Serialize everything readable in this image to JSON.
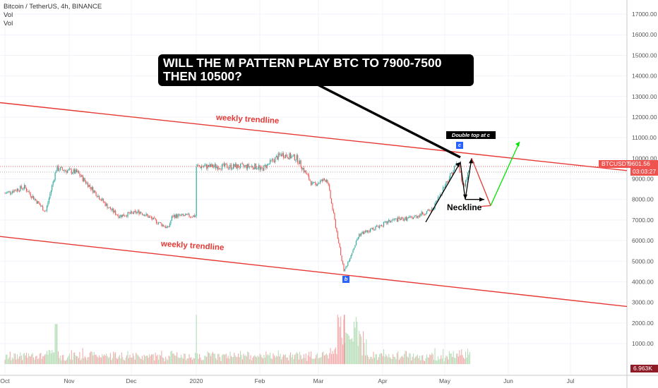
{
  "header": {
    "symbol_line": "Bitcoin / TetherUS, 4h, BINANCE",
    "indicator_1": "Vol",
    "indicator_2": "Vol"
  },
  "annotations": {
    "callout_line_1": "WILL THE M PATTERN PLAY BTC TO 7900-7500",
    "callout_line_2": "THEN 10500?",
    "double_top_label": "Double top at c",
    "point_c": "c",
    "point_b": "b",
    "neckline_label": "Neckline",
    "upper_trendline_label": "weekly trendline",
    "lower_trendline_label": "weekly trendline"
  },
  "price_tags": {
    "symbol": "BTCUSDT",
    "last_price": "9601.56",
    "countdown": "03:03:27",
    "volume": "6.963K"
  },
  "colors": {
    "up": "#26a69a",
    "down": "#ef5350",
    "trendline": "#e53935",
    "projection_down": "#e53935",
    "projection_up": "#00e600"
  },
  "chart_data": {
    "type": "candlestick",
    "x_tick_labels": [
      "Oct",
      "Nov",
      "Dec",
      "2020",
      "Feb",
      "Mar",
      "Apr",
      "May",
      "Jun",
      "Jul"
    ],
    "y_tick_labels": [
      "17000.00",
      "16000.00",
      "15000.00",
      "14000.00",
      "13000.00",
      "12000.00",
      "11000.00",
      "10000.00",
      "9000.00",
      "8000.00",
      "7000.00",
      "6000.00",
      "5000.00",
      "4000.00",
      "3000.00",
      "2000.00",
      "1000.00"
    ],
    "y_ticks": [
      17000,
      16000,
      15000,
      14000,
      13000,
      12000,
      11000,
      10000,
      9000,
      8000,
      7000,
      6000,
      5000,
      4000,
      3000,
      2000,
      1000
    ],
    "ylim": [
      0,
      17700
    ],
    "price_path": [
      [
        "Oct",
        8300
      ],
      [
        "Oct 10",
        8600
      ],
      [
        "Oct 20",
        7400
      ],
      [
        "Oct 25",
        9500
      ],
      [
        "Nov 5",
        9300
      ],
      [
        "Nov 20",
        7600
      ],
      [
        "Nov 25",
        7200
      ],
      [
        "Dec 5",
        7400
      ],
      [
        "Dec 18",
        6600
      ],
      [
        "Dec 20",
        7200
      ],
      [
        "2020",
        7200
      ],
      [
        "Jan 15",
        8700
      ],
      [
        "Feb 1",
        9400
      ],
      [
        "Feb 12",
        10200
      ],
      [
        "Feb 20",
        10000
      ],
      [
        "Feb 28",
        8700
      ],
      [
        "Mar 5",
        9000
      ],
      [
        "Mar 12",
        5000
      ],
      [
        "Mar 13",
        4500
      ],
      [
        "Mar 20",
        6300
      ],
      [
        "Apr 6",
        7000
      ],
      [
        "Apr 15",
        7100
      ],
      [
        "Apr 25",
        7500
      ],
      [
        "May 1",
        8700
      ],
      [
        "May 7",
        9800
      ],
      [
        "May 10",
        8600
      ],
      [
        "May 12",
        9300
      ],
      [
        "May 13",
        9600
      ]
    ],
    "volume_peak": 2400,
    "last_price": 9601.56,
    "drawn_patterns": {
      "upper_weekly_trendline": [
        [
          "start",
          12700
        ],
        [
          "end",
          9400
        ]
      ],
      "lower_weekly_trendline": [
        [
          "start",
          6200
        ],
        [
          "end",
          2800
        ]
      ],
      "m_pattern_projection": [
        9800,
        8000,
        10000,
        7700
      ],
      "green_target": 10800
    }
  }
}
